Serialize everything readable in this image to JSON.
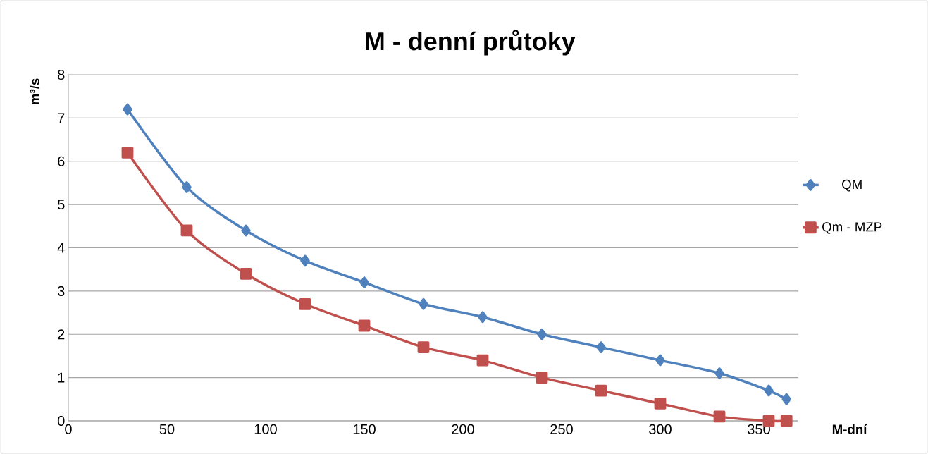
{
  "chart_data": {
    "type": "line",
    "title": "M - denní průtoky",
    "xlabel": "M-dní",
    "ylabel": "m³/s",
    "x": [
      30,
      60,
      90,
      120,
      150,
      180,
      210,
      240,
      270,
      300,
      330,
      355,
      364
    ],
    "series": [
      {
        "name": "QM",
        "color": "#4f81bd",
        "marker": "diamond",
        "values": [
          7.2,
          5.4,
          4.4,
          3.7,
          3.2,
          2.7,
          2.4,
          2.0,
          1.7,
          1.4,
          1.1,
          0.7,
          0.5
        ]
      },
      {
        "name": "Qm - MZP",
        "color": "#c0504d",
        "marker": "square",
        "values": [
          6.2,
          4.4,
          3.4,
          2.7,
          2.2,
          1.7,
          1.4,
          1.0,
          0.7,
          0.4,
          0.1,
          0,
          0
        ]
      }
    ],
    "xlim": [
      0,
      370
    ],
    "ylim": [
      0,
      8
    ],
    "xticks": [
      0,
      50,
      100,
      150,
      200,
      250,
      300,
      350
    ],
    "yticks": [
      0,
      1,
      2,
      3,
      4,
      5,
      6,
      7,
      8
    ],
    "grid": "y",
    "legend": "right",
    "line_style": "solid"
  }
}
